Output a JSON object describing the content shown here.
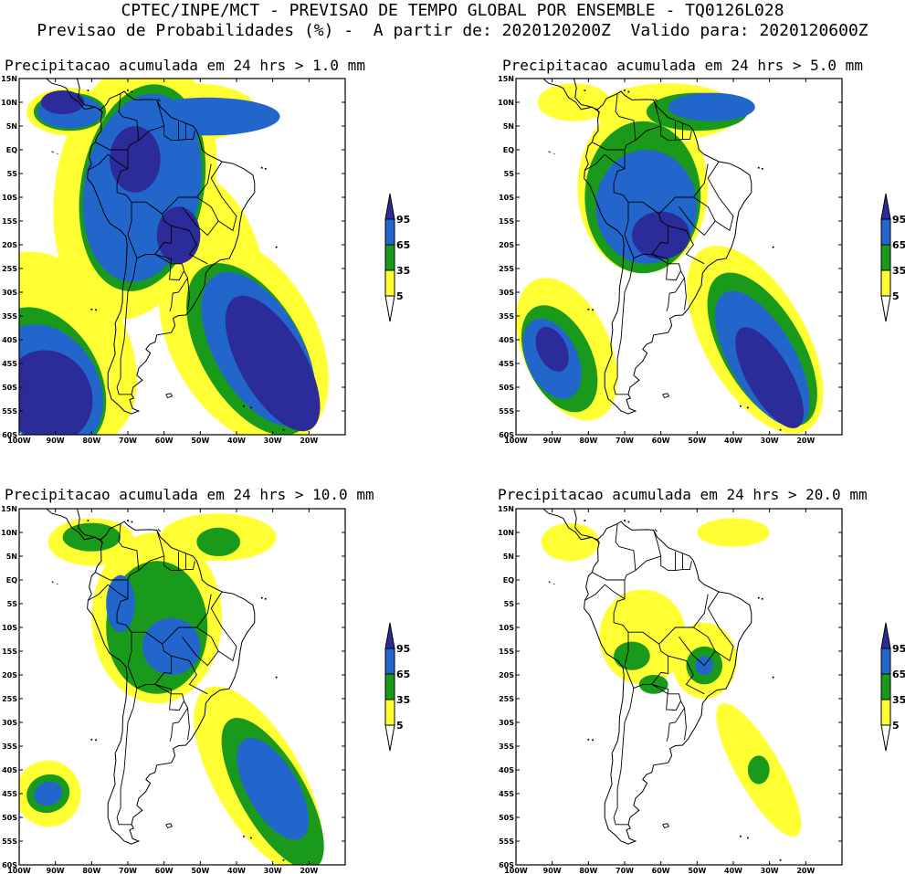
{
  "header": {
    "line1": "CPTEC/INPE/MCT - PREVISAO DE TEMPO GLOBAL POR ENSEMBLE - TQ0126L028",
    "line2": "Previsao de Probabilidades (%) -  A partir de: 2020120200Z  Valido para: 2020120600Z"
  },
  "panels": [
    {
      "title": "Precipitacao acumulada em 24 hrs > 1.0 mm"
    },
    {
      "title": "Precipitacao acumulada em 24 hrs > 5.0 mm"
    },
    {
      "title": "Precipitacao acumulada em 24 hrs > 10.0 mm"
    },
    {
      "title": "Precipitacao acumulada em 24 hrs > 20.0 mm"
    }
  ],
  "lat_labels": [
    "15N",
    "10N",
    "5N",
    "EQ",
    "5S",
    "10S",
    "15S",
    "20S",
    "25S",
    "30S",
    "35S",
    "40S",
    "45S",
    "50S",
    "55S",
    "60S"
  ],
  "lon_labels": [
    "100W",
    "90W",
    "80W",
    "70W",
    "60W",
    "50W",
    "40W",
    "30W",
    "20W"
  ],
  "colorbar": {
    "labels": [
      "95",
      "65",
      "35",
      "5"
    ],
    "colors": {
      "c95": "#2b2b9a",
      "c65": "#2266cc",
      "c35": "#1a9a1a",
      "c5": "#ffff33"
    }
  },
  "colors": {
    "c95": "#2b2b9a",
    "c65": "#2266cc",
    "c35": "#1a9a1a",
    "c5": "#ffff33"
  }
}
